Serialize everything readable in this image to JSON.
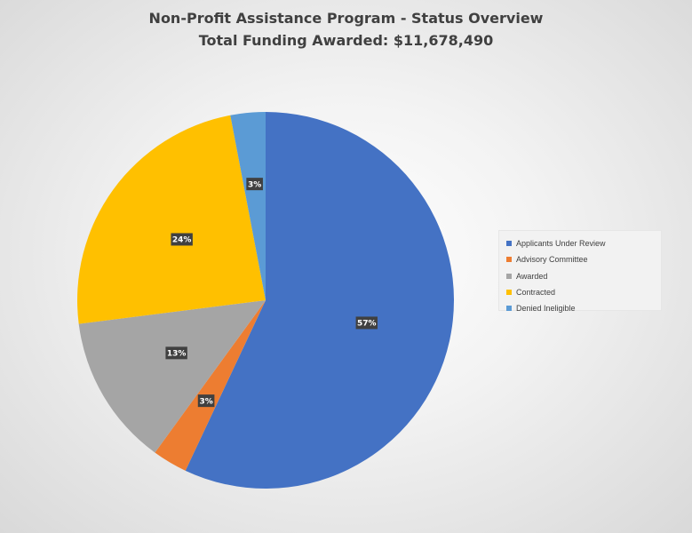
{
  "chart_data": {
    "type": "pie",
    "title": "Non-Profit Assistance Program - Status Overview",
    "subtitle": "Total Funding Awarded: $11,678,490",
    "categories": [
      "Applicants Under Review",
      "Advisory Committee",
      "Awarded",
      "Contracted",
      "Denied Ineligible"
    ],
    "values": [
      57,
      3,
      13,
      24,
      3
    ],
    "labels": [
      "57%",
      "3%",
      "13%",
      "24%",
      "3%"
    ],
    "colors": [
      "#4472C4",
      "#ED7D31",
      "#A5A5A5",
      "#FFC000",
      "#5B9BD5"
    ],
    "legend_position": "right"
  }
}
